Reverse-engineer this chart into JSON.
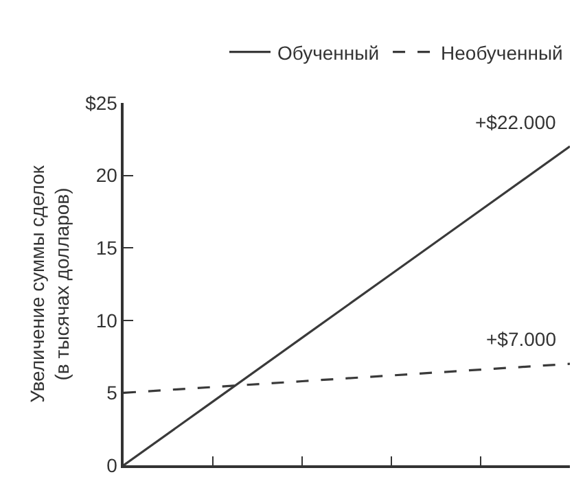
{
  "chart_data": {
    "type": "line",
    "ylabel": "Увеличение суммы сделок\n(в тысячах долларов)",
    "categories": [
      null,
      null,
      null,
      null,
      null,
      null
    ],
    "ylim": [
      0,
      25
    ],
    "yticks": [
      0,
      5,
      10,
      15,
      20,
      {
        "value": 25,
        "label": "$25"
      }
    ],
    "tick_labels": "y",
    "grid": false,
    "legend": "top right",
    "marker": "none",
    "series": [
      {
        "name": "Обученный",
        "color": "#3a3a3a",
        "line_style": "solid",
        "values": [
          0,
          4.4,
          8.8,
          13.2,
          17.6,
          22
        ]
      },
      {
        "name": "Необученный",
        "color": "#3a3a3a",
        "line_style": "dashed",
        "values": [
          5,
          5.4,
          5.8,
          6.2,
          6.6,
          7
        ]
      }
    ],
    "annotations": [
      "+$22.000",
      "+$7.000"
    ]
  }
}
